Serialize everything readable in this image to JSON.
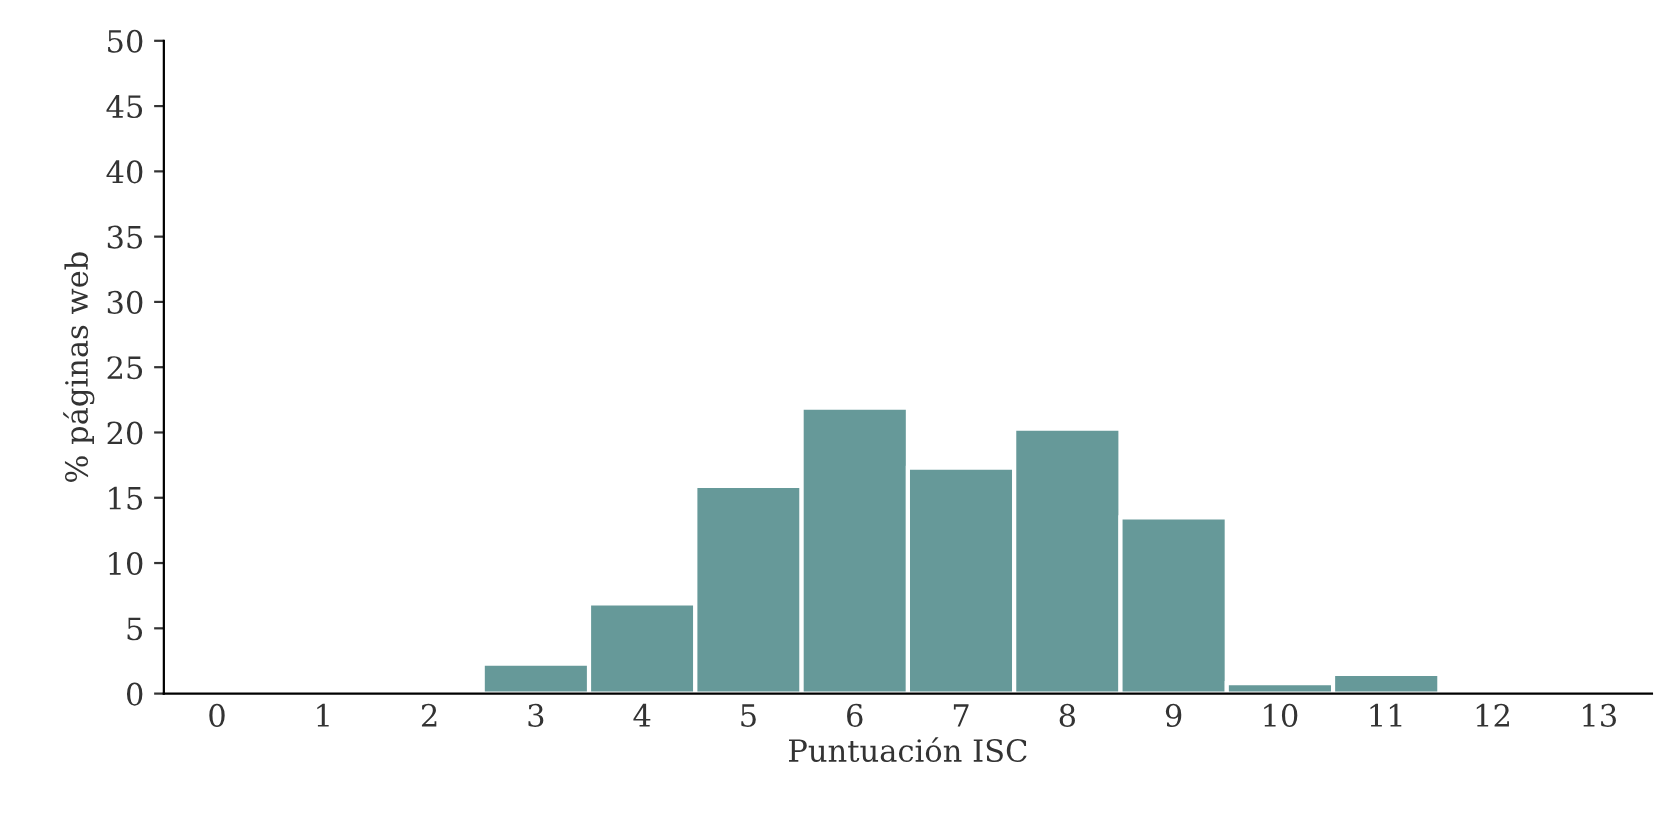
{
  "chart_data": {
    "type": "bar",
    "xlabel": "Puntuación ISC",
    "ylabel": "% páginas web",
    "categories": [
      "0",
      "1",
      "2",
      "3",
      "4",
      "5",
      "6",
      "7",
      "8",
      "9",
      "10",
      "11",
      "12",
      "13"
    ],
    "values": [
      0,
      0,
      0,
      2.3,
      6.9,
      15.9,
      21.9,
      17.3,
      20.3,
      13.5,
      0.8,
      1.5,
      0,
      0
    ],
    "color": "#669999",
    "ylim": [
      0,
      50
    ],
    "yticks": [
      0,
      5,
      10,
      15,
      20,
      25,
      30,
      35,
      40,
      45,
      50
    ],
    "grid": false,
    "legend": false
  }
}
